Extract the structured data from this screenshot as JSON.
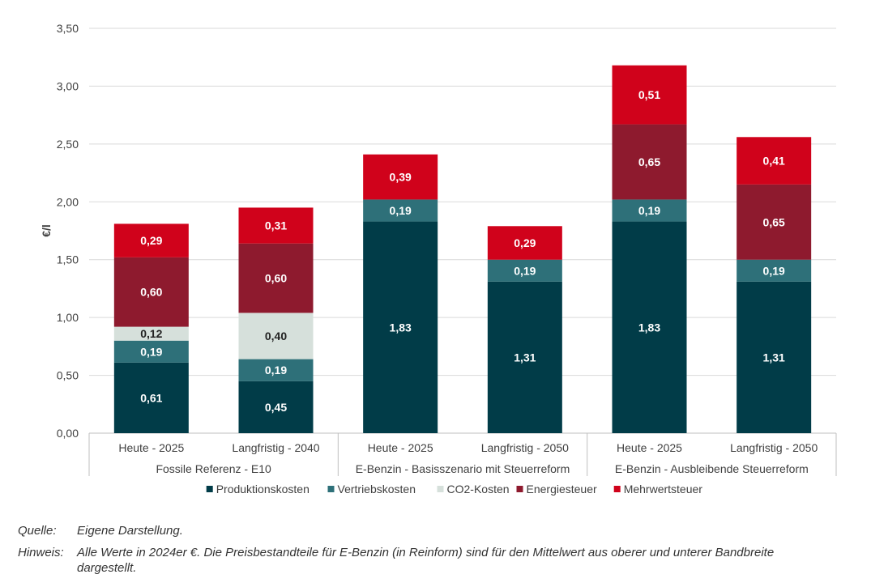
{
  "chart_data": {
    "type": "bar",
    "stacked": true,
    "ylabel": "€/l",
    "ylim": [
      0,
      3.5
    ],
    "yticks": [
      "0,00",
      "0,50",
      "1,00",
      "1,50",
      "2,00",
      "2,50",
      "3,00",
      "3,50"
    ],
    "grid": true,
    "legend_position": "bottom",
    "categories": [
      "Heute - 2025",
      "Langfristig - 2040",
      "Heute - 2025",
      "Langfristig - 2050",
      "Heute - 2025",
      "Langfristig - 2050"
    ],
    "groups": [
      {
        "label": "Fossile Referenz - E10",
        "span": 2
      },
      {
        "label": "E-Benzin - Basisszenario mit Steuerreform",
        "span": 2
      },
      {
        "label": "E-Benzin - Ausbleibende Steuerreform",
        "span": 2
      }
    ],
    "series": [
      {
        "name": "Produktionskosten",
        "color": "#013c48",
        "label_color": "#ffffff",
        "values": [
          0.61,
          0.45,
          1.83,
          1.31,
          1.83,
          1.31
        ]
      },
      {
        "name": "Vertriebskosten",
        "color": "#2e7079",
        "label_color": "#ffffff",
        "values": [
          0.19,
          0.19,
          0.19,
          0.19,
          0.19,
          0.19
        ]
      },
      {
        "name": "CO2-Kosten",
        "color": "#d6e0db",
        "label_color": "#222222",
        "values": [
          0.12,
          0.4,
          0,
          0,
          0,
          0
        ]
      },
      {
        "name": "Energiesteuer",
        "color": "#8e1a2e",
        "label_color": "#ffffff",
        "values": [
          0.6,
          0.6,
          0,
          0,
          0.65,
          0.65
        ]
      },
      {
        "name": "Mehrwertsteuer",
        "color": "#d0021b",
        "label_color": "#ffffff",
        "values": [
          0.29,
          0.31,
          0.39,
          0.29,
          0.51,
          0.41
        ]
      }
    ]
  },
  "notes": [
    {
      "key": "Quelle:",
      "text": "Eigene Darstellung."
    },
    {
      "key": "Hinweis:",
      "text": "Alle Werte in 2024er €. Die Preisbestandteile für E-Benzin (in Reinform) sind für den Mittelwert aus oberer und unterer Bandbreite dargestellt."
    }
  ]
}
